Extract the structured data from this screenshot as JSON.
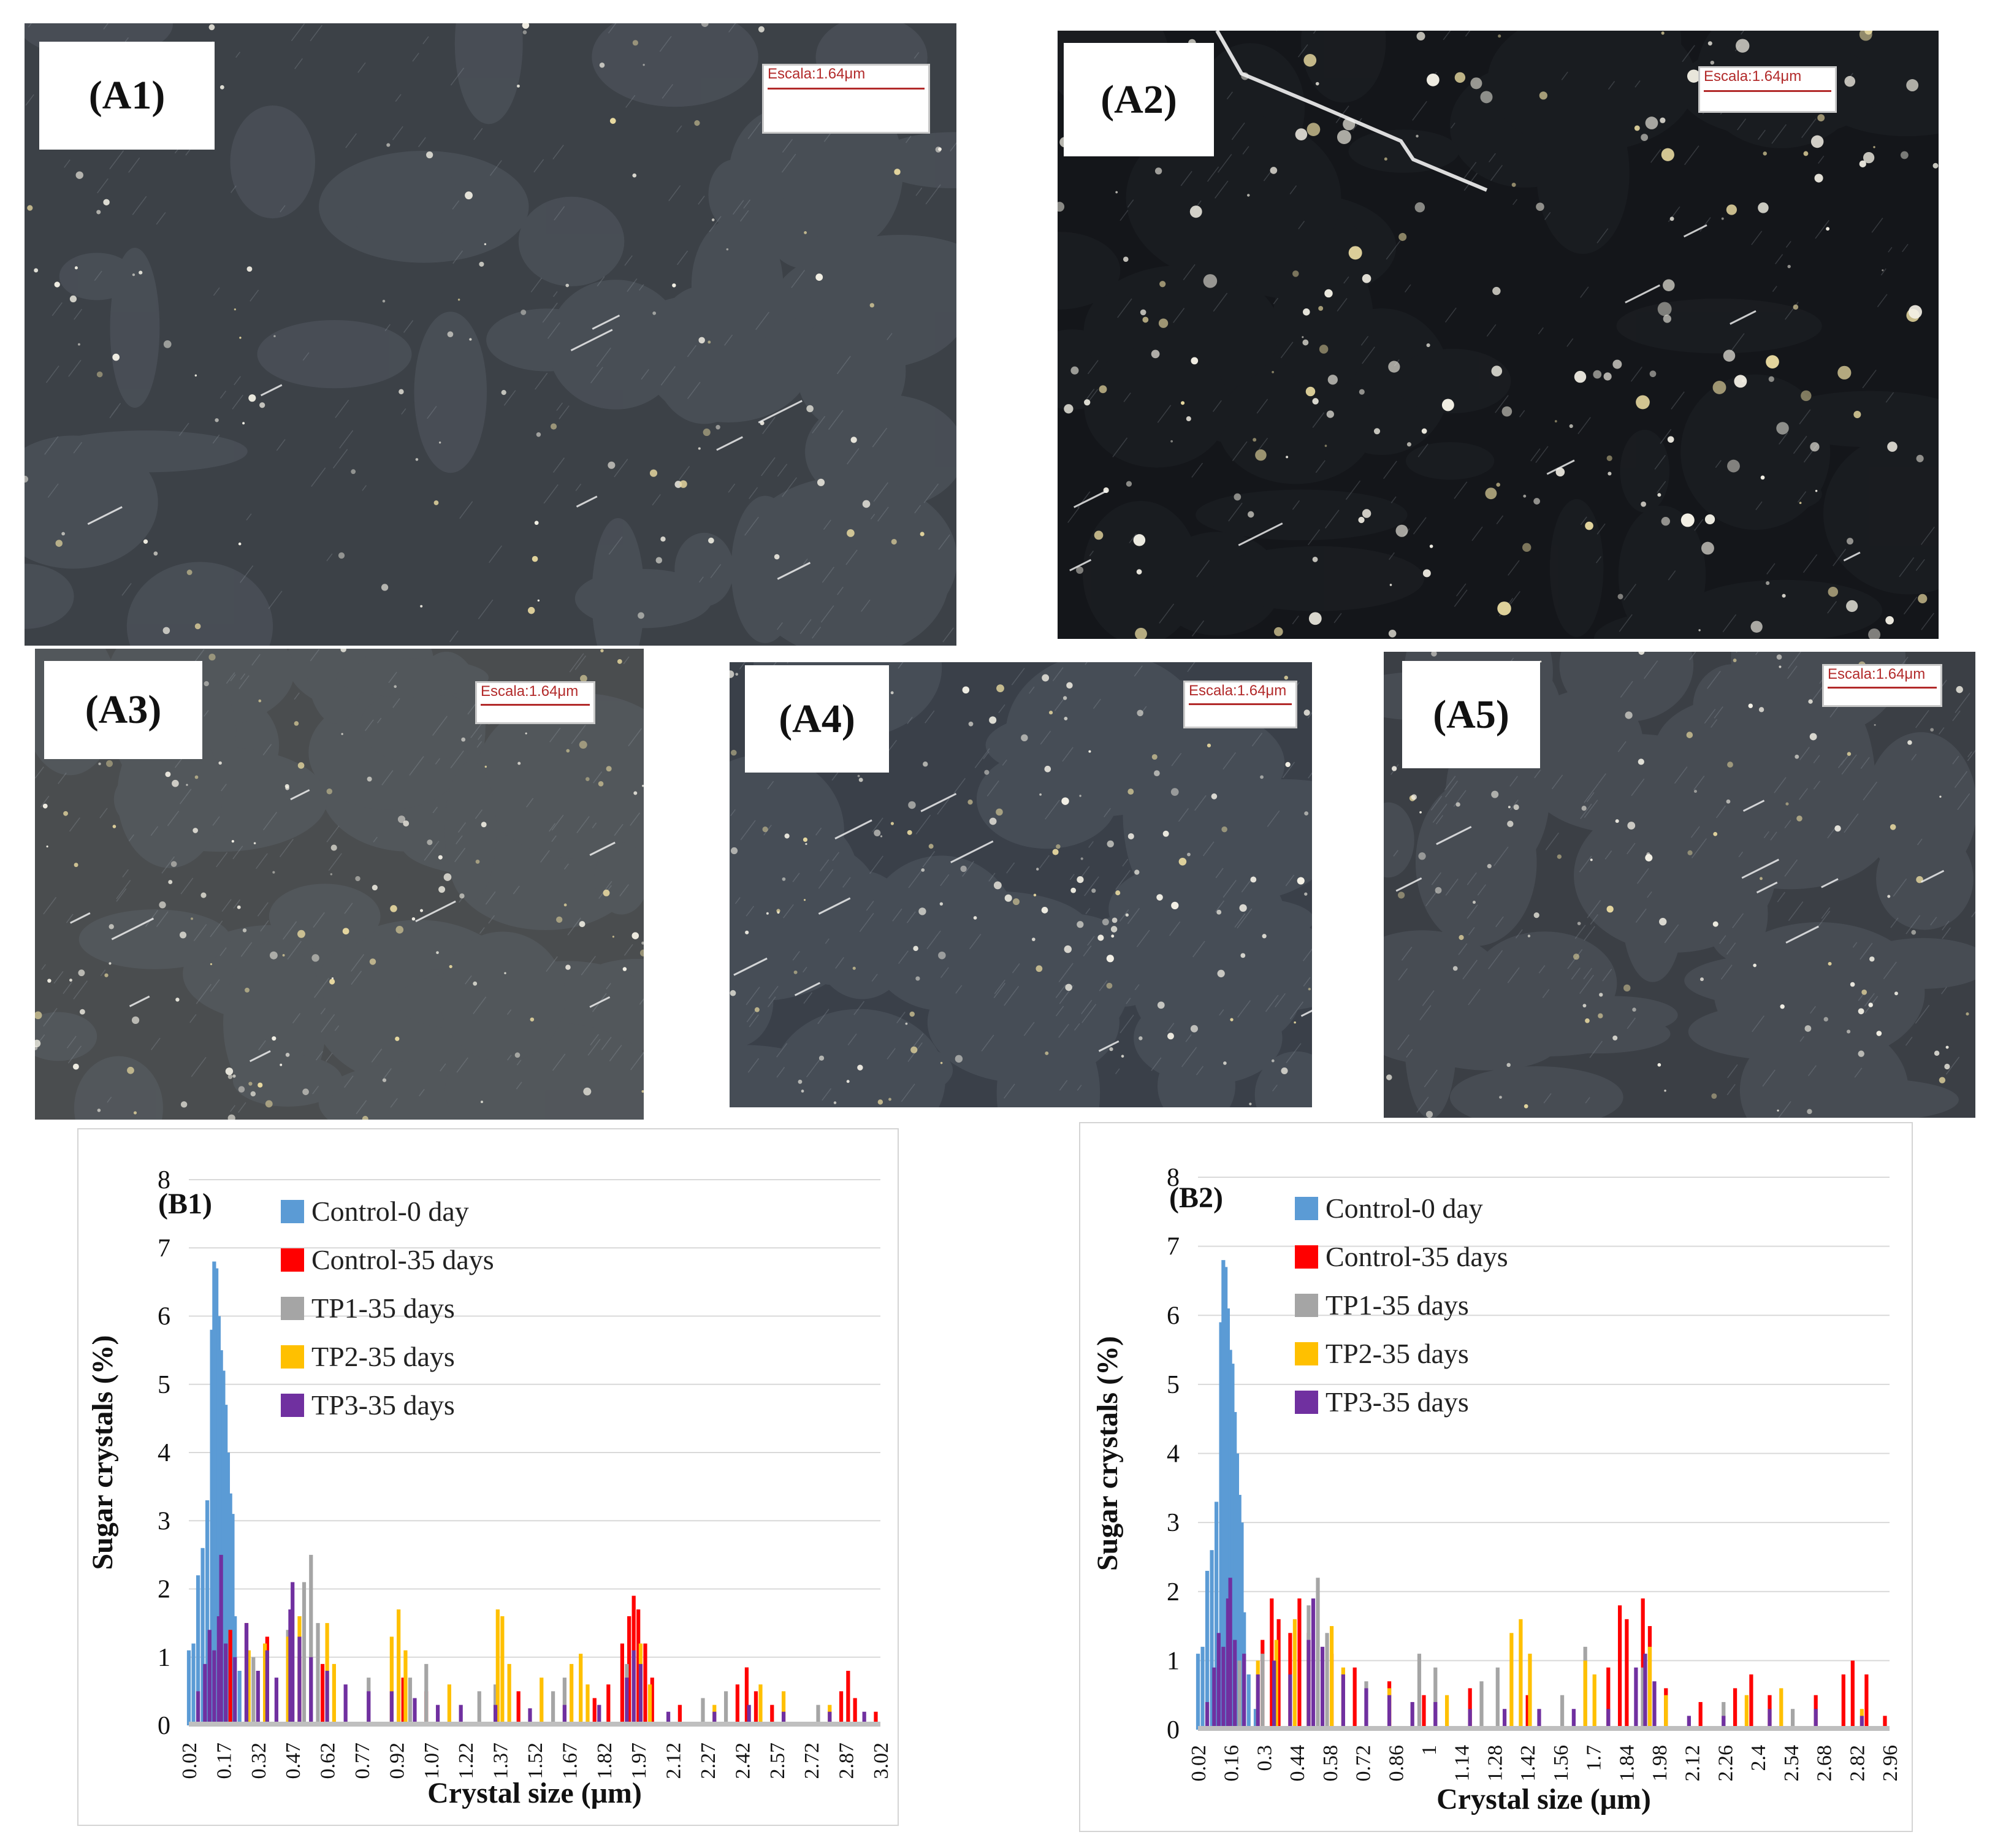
{
  "micrographs": [
    {
      "label": "(A1)",
      "scale_text": "Escala:1.64μm",
      "tone": "#3c4147"
    },
    {
      "label": "(A2)",
      "scale_text": "Escala:1.64μm",
      "tone": "#14161a"
    },
    {
      "label": "(A3)",
      "scale_text": "Escala:1.64μm",
      "tone": "#4a4d4f"
    },
    {
      "label": "(A4)",
      "scale_text": "Escala:1.64μm",
      "tone": "#3a4049"
    },
    {
      "label": "(A5)",
      "scale_text": "Escala:1.64μm",
      "tone": "#3b3f45"
    }
  ],
  "colors": {
    "control_0": "#5b9bd5",
    "control_35": "#ff0000",
    "tp1": "#a5a5a5",
    "tp2": "#ffc000",
    "tp3": "#7030a0",
    "grid": "#d9d9d9"
  },
  "chart_data": [
    {
      "type": "bar",
      "panel": "(B1)",
      "xlabel": "Crystal size (μm)",
      "ylabel": "Sugar crystals  (%)",
      "ylim": [
        0,
        8
      ],
      "yticks": [
        "0",
        "1",
        "2",
        "3",
        "4",
        "5",
        "6",
        "7",
        "8"
      ],
      "xticks": [
        "0.02",
        "0.17",
        "0.32",
        "0.47",
        "0.62",
        "0.77",
        "0.92",
        "1.07",
        "1.22",
        "1.37",
        "1.52",
        "1.67",
        "1.82",
        "1.97",
        "2.12",
        "2.27",
        "2.42",
        "2.57",
        "2.72",
        "2.87",
        "3.02"
      ],
      "x_range": [
        0.02,
        3.02
      ],
      "legend_position": "top-left",
      "grid": true,
      "series": [
        {
          "name": "Control-0 day",
          "color_key": "control_0",
          "points": [
            [
              0.02,
              1.1
            ],
            [
              0.04,
              1.2
            ],
            [
              0.06,
              2.2
            ],
            [
              0.08,
              2.6
            ],
            [
              0.1,
              3.3
            ],
            [
              0.12,
              5.8
            ],
            [
              0.13,
              6.8
            ],
            [
              0.14,
              6.7
            ],
            [
              0.15,
              6.0
            ],
            [
              0.16,
              5.5
            ],
            [
              0.17,
              5.2
            ],
            [
              0.18,
              4.7
            ],
            [
              0.19,
              4.0
            ],
            [
              0.2,
              3.4
            ],
            [
              0.21,
              3.1
            ],
            [
              0.22,
              1.6
            ],
            [
              0.24,
              0.8
            ],
            [
              0.27,
              0.3
            ]
          ]
        },
        {
          "name": "Control-35 days",
          "color_key": "control_35",
          "points": [
            [
              0.2,
              1.4
            ],
            [
              0.27,
              1.5
            ],
            [
              0.36,
              1.3
            ],
            [
              0.5,
              1.0
            ],
            [
              0.6,
              0.9
            ],
            [
              0.95,
              0.7
            ],
            [
              1.05,
              0.5
            ],
            [
              1.45,
              0.5
            ],
            [
              1.78,
              0.4
            ],
            [
              1.84,
              0.6
            ],
            [
              1.9,
              1.2
            ],
            [
              1.93,
              1.6
            ],
            [
              1.95,
              1.9
            ],
            [
              1.97,
              1.7
            ],
            [
              2.0,
              1.2
            ],
            [
              2.03,
              0.7
            ],
            [
              2.15,
              0.3
            ],
            [
              2.4,
              0.6
            ],
            [
              2.44,
              0.85
            ],
            [
              2.48,
              0.5
            ],
            [
              2.55,
              0.3
            ],
            [
              2.85,
              0.5
            ],
            [
              2.88,
              0.8
            ],
            [
              2.91,
              0.4
            ],
            [
              3.0,
              0.2
            ]
          ]
        },
        {
          "name": "TP1-35 days",
          "color_key": "tp1",
          "points": [
            [
              0.15,
              1.3
            ],
            [
              0.3,
              1.0
            ],
            [
              0.45,
              1.4
            ],
            [
              0.52,
              2.1
            ],
            [
              0.55,
              2.5
            ],
            [
              0.58,
              1.5
            ],
            [
              0.8,
              0.7
            ],
            [
              0.98,
              0.7
            ],
            [
              1.05,
              0.9
            ],
            [
              1.28,
              0.5
            ],
            [
              1.35,
              0.6
            ],
            [
              1.6,
              0.5
            ],
            [
              1.65,
              0.7
            ],
            [
              1.92,
              0.9
            ],
            [
              2.25,
              0.4
            ],
            [
              2.35,
              0.5
            ],
            [
              2.75,
              0.3
            ]
          ]
        },
        {
          "name": "TP2-35 days",
          "color_key": "tp2",
          "points": [
            [
              0.28,
              1.1
            ],
            [
              0.35,
              1.2
            ],
            [
              0.45,
              1.3
            ],
            [
              0.5,
              1.6
            ],
            [
              0.62,
              1.5
            ],
            [
              0.65,
              0.9
            ],
            [
              0.9,
              1.3
            ],
            [
              0.93,
              1.7
            ],
            [
              0.96,
              1.1
            ],
            [
              1.15,
              0.6
            ],
            [
              1.36,
              1.7
            ],
            [
              1.38,
              1.6
            ],
            [
              1.41,
              0.9
            ],
            [
              1.55,
              0.7
            ],
            [
              1.68,
              0.9
            ],
            [
              1.72,
              1.05
            ],
            [
              1.75,
              0.6
            ],
            [
              1.98,
              1.2
            ],
            [
              2.02,
              0.6
            ],
            [
              2.3,
              0.3
            ],
            [
              2.5,
              0.6
            ],
            [
              2.6,
              0.5
            ],
            [
              2.8,
              0.3
            ]
          ]
        },
        {
          "name": "TP3-35 days",
          "color_key": "tp3",
          "points": [
            [
              0.06,
              0.5
            ],
            [
              0.09,
              0.9
            ],
            [
              0.11,
              1.4
            ],
            [
              0.13,
              1.1
            ],
            [
              0.15,
              1.6
            ],
            [
              0.16,
              2.5
            ],
            [
              0.18,
              1.2
            ],
            [
              0.22,
              1.0
            ],
            [
              0.27,
              1.5
            ],
            [
              0.32,
              0.8
            ],
            [
              0.36,
              1.1
            ],
            [
              0.4,
              0.7
            ],
            [
              0.46,
              1.7
            ],
            [
              0.47,
              2.1
            ],
            [
              0.5,
              1.3
            ],
            [
              0.55,
              1.0
            ],
            [
              0.62,
              0.8
            ],
            [
              0.7,
              0.6
            ],
            [
              0.8,
              0.5
            ],
            [
              0.9,
              0.5
            ],
            [
              1.0,
              0.4
            ],
            [
              1.1,
              0.3
            ],
            [
              1.2,
              0.3
            ],
            [
              1.35,
              0.3
            ],
            [
              1.5,
              0.25
            ],
            [
              1.65,
              0.3
            ],
            [
              1.8,
              0.3
            ],
            [
              1.92,
              0.7
            ],
            [
              1.95,
              1.1
            ],
            [
              1.98,
              0.9
            ],
            [
              2.1,
              0.2
            ],
            [
              2.3,
              0.2
            ],
            [
              2.45,
              0.3
            ],
            [
              2.6,
              0.2
            ],
            [
              2.8,
              0.2
            ],
            [
              2.95,
              0.2
            ]
          ]
        }
      ]
    },
    {
      "type": "bar",
      "panel": "(B2)",
      "xlabel": "Crystal size (μm)",
      "ylabel": "Sugar crystals  (%)",
      "ylim": [
        0,
        8
      ],
      "yticks": [
        "0",
        "1",
        "2",
        "3",
        "4",
        "5",
        "6",
        "7",
        "8"
      ],
      "xticks": [
        "0.02",
        "0.16",
        "0.3",
        "0.44",
        "0.58",
        "0.72",
        "0.86",
        "1",
        "1.14",
        "1.28",
        "1.42",
        "1.56",
        "1.7",
        "1.84",
        "1.98",
        "2.12",
        "2.26",
        "2.4",
        "2.54",
        "2.68",
        "2.82",
        "2.96"
      ],
      "x_range": [
        0.02,
        3.02
      ],
      "legend_position": "top-left",
      "grid": true,
      "series": [
        {
          "name": "Control-0 day",
          "color_key": "control_0",
          "points": [
            [
              0.02,
              1.1
            ],
            [
              0.04,
              1.2
            ],
            [
              0.06,
              2.3
            ],
            [
              0.08,
              2.6
            ],
            [
              0.1,
              3.3
            ],
            [
              0.12,
              5.9
            ],
            [
              0.13,
              6.8
            ],
            [
              0.14,
              6.7
            ],
            [
              0.15,
              6.1
            ],
            [
              0.16,
              5.5
            ],
            [
              0.17,
              5.3
            ],
            [
              0.18,
              4.6
            ],
            [
              0.19,
              4.0
            ],
            [
              0.2,
              3.4
            ],
            [
              0.21,
              3.0
            ],
            [
              0.22,
              1.7
            ],
            [
              0.24,
              0.8
            ],
            [
              0.27,
              0.3
            ]
          ]
        },
        {
          "name": "Control-35 days",
          "color_key": "control_35",
          "points": [
            [
              0.3,
              1.3
            ],
            [
              0.34,
              1.9
            ],
            [
              0.37,
              1.6
            ],
            [
              0.42,
              1.4
            ],
            [
              0.46,
              1.9
            ],
            [
              0.5,
              1.4
            ],
            [
              0.6,
              1.1
            ],
            [
              0.7,
              0.9
            ],
            [
              0.85,
              0.7
            ],
            [
              1.0,
              0.5
            ],
            [
              1.2,
              0.6
            ],
            [
              1.45,
              0.5
            ],
            [
              1.8,
              0.9
            ],
            [
              1.85,
              1.8
            ],
            [
              1.88,
              1.6
            ],
            [
              1.95,
              1.9
            ],
            [
              1.98,
              1.5
            ],
            [
              2.05,
              0.6
            ],
            [
              2.2,
              0.4
            ],
            [
              2.35,
              0.6
            ],
            [
              2.42,
              0.8
            ],
            [
              2.5,
              0.5
            ],
            [
              2.7,
              0.5
            ],
            [
              2.82,
              0.8
            ],
            [
              2.86,
              1.0
            ],
            [
              2.92,
              0.8
            ],
            [
              3.0,
              0.2
            ]
          ]
        },
        {
          "name": "TP1-35 days",
          "color_key": "tp1",
          "points": [
            [
              0.2,
              1.0
            ],
            [
              0.3,
              1.1
            ],
            [
              0.5,
              1.8
            ],
            [
              0.54,
              2.2
            ],
            [
              0.58,
              1.4
            ],
            [
              0.75,
              0.7
            ],
            [
              0.98,
              1.1
            ],
            [
              1.05,
              0.9
            ],
            [
              1.25,
              0.7
            ],
            [
              1.32,
              0.9
            ],
            [
              1.6,
              0.5
            ],
            [
              1.7,
              1.2
            ],
            [
              1.95,
              0.9
            ],
            [
              2.3,
              0.4
            ],
            [
              2.6,
              0.3
            ]
          ]
        },
        {
          "name": "TP2-35 days",
          "color_key": "tp2",
          "points": [
            [
              0.28,
              1.0
            ],
            [
              0.36,
              1.3
            ],
            [
              0.44,
              1.6
            ],
            [
              0.5,
              1.2
            ],
            [
              0.6,
              1.5
            ],
            [
              0.65,
              0.9
            ],
            [
              0.85,
              0.6
            ],
            [
              1.1,
              0.5
            ],
            [
              1.38,
              1.4
            ],
            [
              1.42,
              1.6
            ],
            [
              1.46,
              1.1
            ],
            [
              1.7,
              1.0
            ],
            [
              1.74,
              0.8
            ],
            [
              1.98,
              1.2
            ],
            [
              2.05,
              0.5
            ],
            [
              2.4,
              0.5
            ],
            [
              2.55,
              0.6
            ],
            [
              2.9,
              0.3
            ]
          ]
        },
        {
          "name": "TP3-35 days",
          "color_key": "tp3",
          "points": [
            [
              0.06,
              0.4
            ],
            [
              0.09,
              0.9
            ],
            [
              0.11,
              1.4
            ],
            [
              0.13,
              1.2
            ],
            [
              0.15,
              1.9
            ],
            [
              0.16,
              2.2
            ],
            [
              0.18,
              1.3
            ],
            [
              0.22,
              1.1
            ],
            [
              0.28,
              0.8
            ],
            [
              0.35,
              1.0
            ],
            [
              0.42,
              0.8
            ],
            [
              0.5,
              1.3
            ],
            [
              0.52,
              1.9
            ],
            [
              0.56,
              1.2
            ],
            [
              0.65,
              0.8
            ],
            [
              0.75,
              0.6
            ],
            [
              0.85,
              0.5
            ],
            [
              0.95,
              0.4
            ],
            [
              1.05,
              0.4
            ],
            [
              1.2,
              0.3
            ],
            [
              1.35,
              0.3
            ],
            [
              1.5,
              0.3
            ],
            [
              1.65,
              0.3
            ],
            [
              1.8,
              0.3
            ],
            [
              1.92,
              0.9
            ],
            [
              1.96,
              1.1
            ],
            [
              2.0,
              0.7
            ],
            [
              2.15,
              0.2
            ],
            [
              2.3,
              0.2
            ],
            [
              2.5,
              0.3
            ],
            [
              2.7,
              0.3
            ],
            [
              2.9,
              0.2
            ]
          ]
        }
      ]
    }
  ]
}
